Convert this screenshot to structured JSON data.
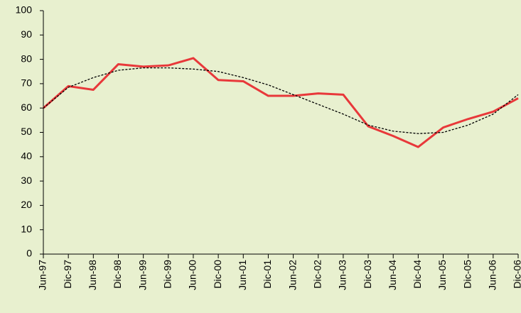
{
  "chart_data": {
    "type": "line",
    "categories": [
      "Jun-97",
      "Dic-97",
      "Jun-98",
      "Dic-98",
      "Jun-99",
      "Dic-99",
      "Jun-00",
      "Dic-00",
      "Jun-01",
      "Dic-01",
      "Jun-02",
      "Dic-02",
      "Jun-03",
      "Dic-03",
      "Jun-04",
      "Dic-04",
      "Jun-05",
      "Dic-05",
      "Jun-06",
      "Dic-06"
    ],
    "series": [
      {
        "color": "#e8383a",
        "style": "solid",
        "values": [
          60,
          69,
          67.5,
          78,
          77,
          77.5,
          80.5,
          71.5,
          71,
          65,
          65,
          66,
          65.5,
          52.5,
          48.5,
          44,
          52,
          55.5,
          58.5,
          64
        ]
      },
      {
        "color": "#000000",
        "style": "dotted",
        "values": [
          60,
          68.5,
          72.5,
          75.5,
          76.5,
          76.5,
          76,
          75,
          72.5,
          69.5,
          65.5,
          61.5,
          57.5,
          53,
          50.5,
          49.5,
          50,
          53,
          57.5,
          65.5
        ]
      }
    ],
    "ylim": [
      0,
      100
    ],
    "yticks": [
      0,
      10,
      20,
      30,
      40,
      50,
      60,
      70,
      80,
      90,
      100
    ],
    "grid": false
  }
}
